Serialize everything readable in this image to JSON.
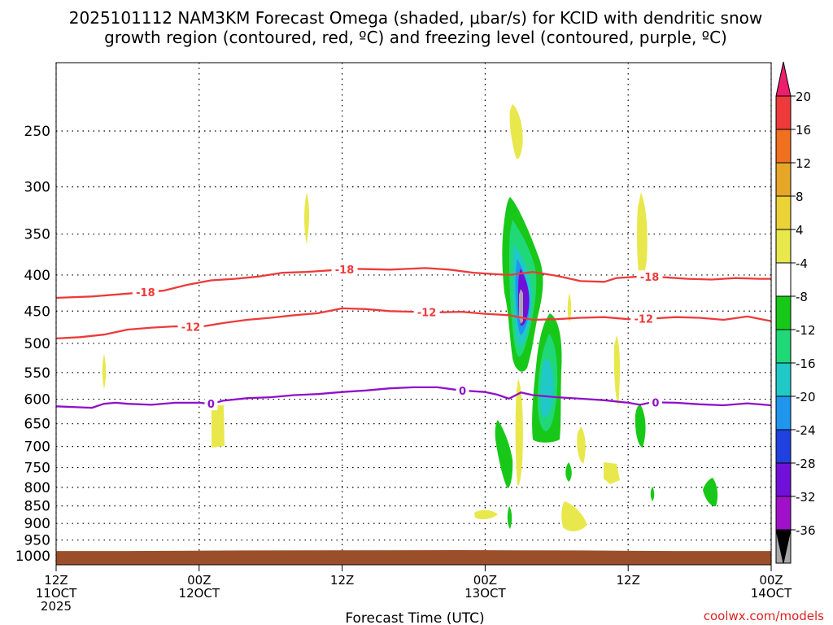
{
  "chart_data": {
    "type": "time-height",
    "title_line1": "2025101112 NAM3KM Forecast Omega (shaded, μbar/s) for KCID with dendritic snow",
    "title_line2": "growth region (contoured, red, ºC) and freezing level (contoured, purple, ºC)",
    "xlabel": "Forecast Time (UTC)",
    "credit": "coolwx.com/models",
    "x_range_hours": [
      0,
      60
    ],
    "x_ticks": [
      {
        "hour": 0,
        "line1": "12Z",
        "line2": "11OCT",
        "line3": "2025"
      },
      {
        "hour": 12,
        "line1": "00Z",
        "line2": "12OCT",
        "line3": ""
      },
      {
        "hour": 24,
        "line1": "12Z",
        "line2": "",
        "line3": ""
      },
      {
        "hour": 36,
        "line1": "00Z",
        "line2": "13OCT",
        "line3": ""
      },
      {
        "hour": 48,
        "line1": "12Z",
        "line2": "",
        "line3": ""
      },
      {
        "hour": 60,
        "line1": "00Z",
        "line2": "14OCT",
        "line3": ""
      }
    ],
    "y_levels": [
      250,
      300,
      350,
      400,
      450,
      500,
      550,
      600,
      650,
      700,
      750,
      800,
      850,
      900,
      950,
      1000
    ],
    "y_range_hpa": [
      200,
      1030
    ],
    "surface_pressure": [
      [
        0,
        985
      ],
      [
        6,
        985
      ],
      [
        16,
        983
      ],
      [
        34,
        982
      ],
      [
        44,
        983
      ],
      [
        52,
        985
      ],
      [
        60,
        985
      ]
    ],
    "colorbar": {
      "labels": [
        "20",
        "16",
        "12",
        "8",
        "4",
        "-4",
        "-8",
        "-12",
        "-16",
        "-20",
        "-24",
        "-28",
        "-32",
        "-36"
      ],
      "colors": [
        "#ee1e6e",
        "#ee3a3a",
        "#f07020",
        "#e6a628",
        "#ebd237",
        "#e8e84c",
        "#ffffff",
        "#18c818",
        "#20d878",
        "#20c8c8",
        "#1e96ee",
        "#2040e0",
        "#7010d8",
        "#a010c8",
        "#a8a8a8",
        "#000000"
      ]
    },
    "contours": [
      {
        "name": "dgz-minus18",
        "color": "#ee3a3a",
        "label": "-18",
        "label_hours": [
          7.5,
          24.2,
          49.8
        ],
        "points": [
          [
            0,
            431
          ],
          [
            3,
            429
          ],
          [
            6,
            425
          ],
          [
            9,
            421
          ],
          [
            11,
            413
          ],
          [
            13,
            407
          ],
          [
            15,
            405
          ],
          [
            17,
            402
          ],
          [
            19,
            397
          ],
          [
            21,
            396
          ],
          [
            23,
            394
          ],
          [
            25,
            392
          ],
          [
            28,
            393
          ],
          [
            31,
            391
          ],
          [
            33,
            393
          ],
          [
            35,
            397
          ],
          [
            37,
            399
          ],
          [
            38,
            400
          ],
          [
            40,
            396
          ],
          [
            42,
            401
          ],
          [
            44,
            408
          ],
          [
            46,
            409
          ],
          [
            47,
            404
          ],
          [
            49,
            402
          ],
          [
            51,
            403
          ],
          [
            53,
            405
          ],
          [
            55,
            406
          ],
          [
            57,
            404
          ],
          [
            59,
            405
          ],
          [
            60,
            405
          ]
        ]
      },
      {
        "name": "dgz-minus12",
        "color": "#ee3a3a",
        "label": "-12",
        "label_hours": [
          11.3,
          31.1,
          49.3
        ],
        "points": [
          [
            0,
            492
          ],
          [
            2,
            490
          ],
          [
            4,
            486
          ],
          [
            6,
            478
          ],
          [
            8,
            475
          ],
          [
            10,
            473
          ],
          [
            12,
            474
          ],
          [
            14,
            468
          ],
          [
            16,
            463
          ],
          [
            18,
            460
          ],
          [
            20,
            456
          ],
          [
            22,
            453
          ],
          [
            24,
            446
          ],
          [
            26,
            447
          ],
          [
            28,
            450
          ],
          [
            30,
            451
          ],
          [
            32,
            452
          ],
          [
            34,
            451
          ],
          [
            36,
            454
          ],
          [
            38,
            456
          ],
          [
            40,
            463
          ],
          [
            42,
            462
          ],
          [
            44,
            460
          ],
          [
            46,
            459
          ],
          [
            48,
            462
          ],
          [
            50,
            461
          ],
          [
            52,
            459
          ],
          [
            54,
            460
          ],
          [
            56,
            463
          ],
          [
            58,
            458
          ],
          [
            60,
            465
          ]
        ]
      },
      {
        "name": "freezing-level-zero",
        "color": "#9010c8",
        "label": "0",
        "label_hours": [
          13.0,
          34.1,
          50.3
        ],
        "points": [
          [
            0,
            614
          ],
          [
            2,
            616
          ],
          [
            3,
            617
          ],
          [
            4,
            609
          ],
          [
            5,
            607
          ],
          [
            6,
            609
          ],
          [
            8,
            611
          ],
          [
            10,
            607
          ],
          [
            12,
            607
          ],
          [
            13,
            609
          ],
          [
            14,
            603
          ],
          [
            16,
            598
          ],
          [
            18,
            596
          ],
          [
            20,
            592
          ],
          [
            22,
            590
          ],
          [
            24,
            586
          ],
          [
            26,
            583
          ],
          [
            28,
            579
          ],
          [
            30,
            577
          ],
          [
            32,
            577
          ],
          [
            34,
            583
          ],
          [
            36,
            586
          ],
          [
            37,
            591
          ],
          [
            38,
            599
          ],
          [
            39,
            587
          ],
          [
            40,
            592
          ],
          [
            42,
            596
          ],
          [
            44,
            599
          ],
          [
            46,
            602
          ],
          [
            48,
            607
          ],
          [
            49,
            611
          ],
          [
            50,
            606
          ],
          [
            52,
            607
          ],
          [
            54,
            610
          ],
          [
            56,
            612
          ],
          [
            58,
            608
          ],
          [
            60,
            612
          ]
        ]
      }
    ]
  }
}
